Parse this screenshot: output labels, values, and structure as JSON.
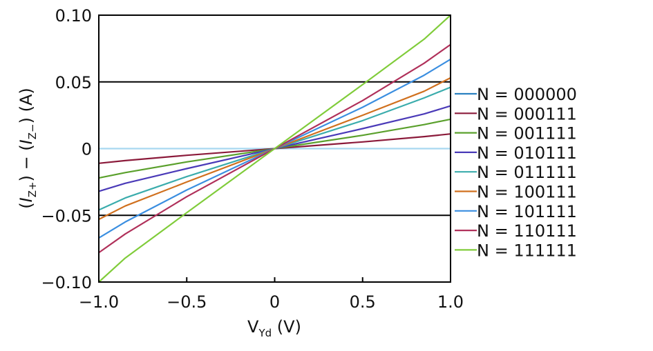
{
  "chart_data": {
    "type": "line",
    "title": "",
    "xlabel_main": "V",
    "xlabel_sub": "Yd",
    "xlabel_unit": " (V)",
    "ylabel": "(I_Z+) − (I_Z−) (A)",
    "ylabel_parts": [
      "(",
      "I",
      "Z+",
      ") − (",
      "I",
      "Z−",
      ") (A)"
    ],
    "xlim": [
      -1.0,
      1.0
    ],
    "ylim": [
      -0.1,
      0.1
    ],
    "xticks": [
      -1.0,
      -0.5,
      0,
      0.5,
      1.0
    ],
    "xtick_labels": [
      "−1.0",
      "−0.5",
      "0",
      "0.5",
      "1.0"
    ],
    "yticks": [
      0.1,
      0.05,
      0,
      -0.05,
      -0.1
    ],
    "ytick_labels": [
      "0.10",
      "0.05",
      "0",
      "−0.05",
      "−0.10"
    ],
    "hlines": [
      0.05,
      0,
      -0.05
    ],
    "legend_position": "right",
    "x": [
      -1.0,
      -0.85,
      -0.5,
      0,
      0.5,
      0.85,
      1.0
    ],
    "series": [
      {
        "name": "N = 000000",
        "color": "#2a80c0",
        "line_color": "#a8d8f0",
        "values": [
          0,
          0,
          0,
          0,
          0,
          0,
          0
        ]
      },
      {
        "name": "N = 000111",
        "color": "#8b1a3a",
        "values": [
          -0.011,
          -0.009,
          -0.005,
          0,
          0.005,
          0.009,
          0.011
        ]
      },
      {
        "name": "N = 001111",
        "color": "#5aa02c",
        "values": [
          -0.022,
          -0.018,
          -0.01,
          0,
          0.01,
          0.018,
          0.022
        ]
      },
      {
        "name": "N = 010111",
        "color": "#4a3ab8",
        "values": [
          -0.032,
          -0.026,
          -0.015,
          0,
          0.015,
          0.026,
          0.032
        ]
      },
      {
        "name": "N = 011111",
        "color": "#3aacac",
        "values": [
          -0.046,
          -0.037,
          -0.021,
          0,
          0.021,
          0.038,
          0.046
        ]
      },
      {
        "name": "N = 100111",
        "color": "#d0701e",
        "values": [
          -0.053,
          -0.043,
          -0.025,
          0,
          0.025,
          0.043,
          0.053
        ]
      },
      {
        "name": "N = 101111",
        "color": "#3a8ee0",
        "values": [
          -0.067,
          -0.055,
          -0.031,
          0,
          0.031,
          0.055,
          0.067
        ]
      },
      {
        "name": "N = 110111",
        "color": "#b0305a",
        "values": [
          -0.078,
          -0.064,
          -0.036,
          0,
          0.036,
          0.064,
          0.078
        ]
      },
      {
        "name": "N = 111111",
        "color": "#80cc3a",
        "values": [
          -0.1,
          -0.082,
          -0.048,
          0,
          0.048,
          0.082,
          0.1
        ]
      }
    ]
  }
}
